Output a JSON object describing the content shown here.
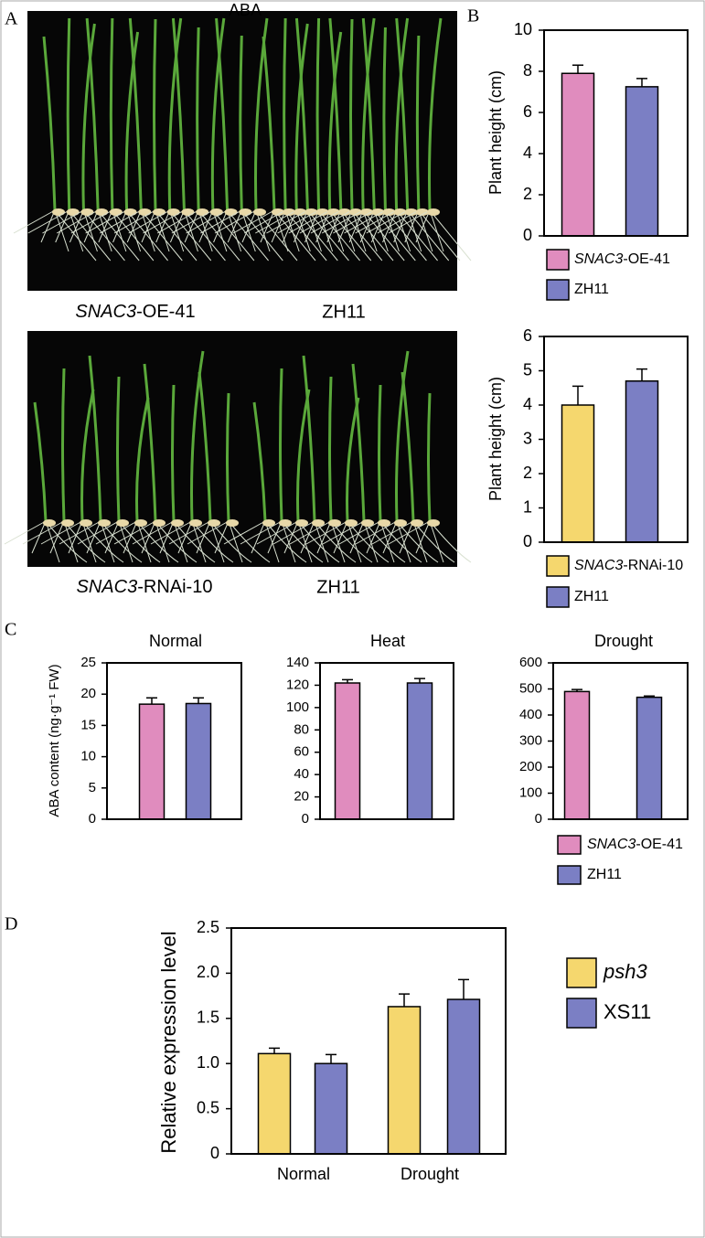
{
  "panel_labels": [
    "A",
    "B",
    "C",
    "D"
  ],
  "photos": {
    "title": "ABA",
    "top_labels": [
      "SNAC3-OE-41",
      "ZH11"
    ],
    "bottom_labels": [
      "SNAC3-RNAi-10",
      "ZH11"
    ]
  },
  "chart_data": [
    {
      "type": "bar",
      "ylabel": "Plant height (cm)",
      "ylim": [
        0,
        10
      ],
      "yticks": [
        0,
        2,
        4,
        6,
        8,
        10
      ],
      "series": [
        {
          "name": "SNAC3-OE-41",
          "color": "#e08cbe",
          "values": [
            7.9
          ],
          "errors": [
            0.4
          ]
        },
        {
          "name": "ZH11",
          "color": "#7b7fc4",
          "values": [
            7.25
          ],
          "errors": [
            0.4
          ]
        }
      ]
    },
    {
      "type": "bar",
      "ylabel": "Plant height (cm)",
      "ylim": [
        0,
        6
      ],
      "yticks": [
        0,
        1,
        2,
        3,
        4,
        5,
        6
      ],
      "series": [
        {
          "name": "SNAC3-RNAi-10",
          "color": "#f5d76e",
          "values": [
            4.0
          ],
          "errors": [
            0.55
          ]
        },
        {
          "name": "ZH11",
          "color": "#7b7fc4",
          "values": [
            4.7
          ],
          "errors": [
            0.35
          ]
        }
      ]
    },
    {
      "type": "bar",
      "title": "Normal",
      "ylabel": "ABA content (ng·g⁻¹ FW)",
      "ylim": [
        0,
        25
      ],
      "yticks": [
        0,
        5,
        10,
        15,
        20,
        25
      ],
      "series": [
        {
          "color": "#e08cbe",
          "values": [
            18.4
          ],
          "errors": [
            1.0
          ]
        },
        {
          "color": "#7b7fc4",
          "values": [
            18.5
          ],
          "errors": [
            0.9
          ]
        }
      ]
    },
    {
      "type": "bar",
      "title": "Heat",
      "ylim": [
        0,
        140
      ],
      "yticks": [
        0,
        20,
        40,
        60,
        80,
        100,
        120,
        140
      ],
      "series": [
        {
          "color": "#e08cbe",
          "values": [
            122
          ],
          "errors": [
            3
          ]
        },
        {
          "color": "#7b7fc4",
          "values": [
            122
          ],
          "errors": [
            4
          ]
        }
      ]
    },
    {
      "type": "bar",
      "title": "Drought",
      "ylim": [
        0,
        600
      ],
      "yticks": [
        0,
        100,
        200,
        300,
        400,
        500,
        600
      ],
      "series": [
        {
          "name": "SNAC3-OE-41",
          "color": "#e08cbe",
          "values": [
            490
          ],
          "errors": [
            8
          ]
        },
        {
          "name": "ZH11",
          "color": "#7b7fc4",
          "values": [
            468
          ],
          "errors": [
            5
          ]
        }
      ]
    },
    {
      "type": "bar",
      "ylabel": "Relative expression level",
      "categories": [
        "Normal",
        "Drought"
      ],
      "ylim": [
        0,
        2.5
      ],
      "yticks": [
        0,
        0.5,
        {
          "value": 1,
          "label": "1.0"
        },
        1.5,
        {
          "value": 2,
          "label": "2.0"
        },
        2.5
      ],
      "series": [
        {
          "name": "psh3",
          "color": "#f5d76e",
          "values": [
            1.11,
            1.63
          ],
          "errors": [
            0.06,
            0.14
          ]
        },
        {
          "name": "XS11",
          "color": "#7b7fc4",
          "values": [
            1.0,
            1.71
          ],
          "errors": [
            0.1,
            0.22
          ]
        }
      ]
    }
  ]
}
